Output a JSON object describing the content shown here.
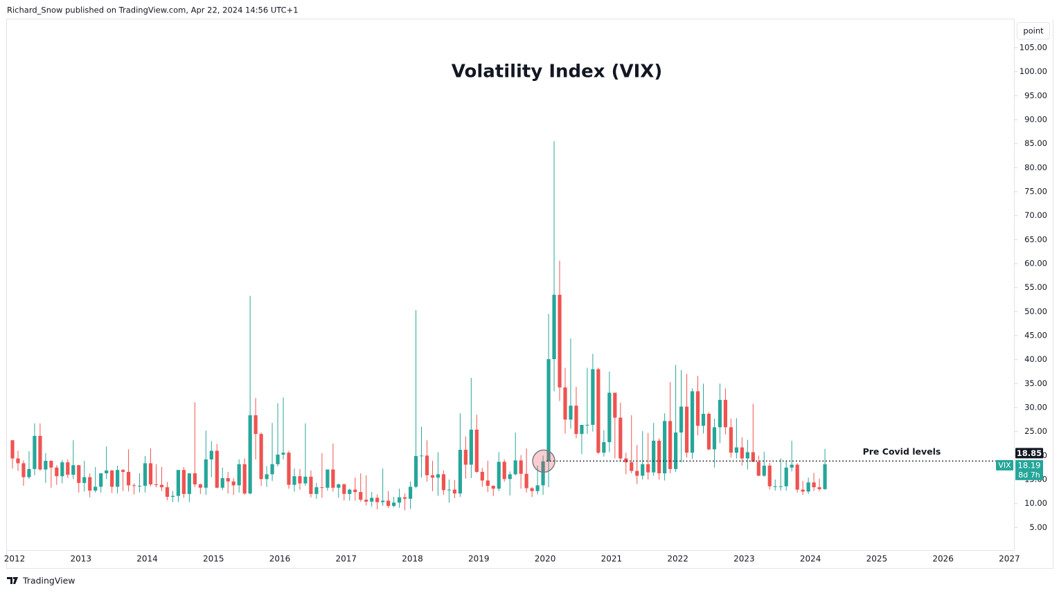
{
  "header": "Richard_Snow published on TradingView.com, Apr 22, 2024 14:56 UTC+1",
  "footer": "TradingView",
  "chart_data": {
    "type": "candlestick",
    "title": "Volatility Index (VIX)",
    "scale_label": "point",
    "up_color": "#26a69a",
    "down_color": "#ef5350",
    "categories": [
      "2012",
      null,
      null,
      null,
      null,
      null,
      null,
      null,
      null,
      null,
      null,
      null,
      "2013",
      null,
      null,
      null,
      null,
      null,
      null,
      null,
      null,
      null,
      null,
      null,
      "2014",
      null,
      null,
      null,
      null,
      null,
      null,
      null,
      null,
      null,
      null,
      null,
      "2015",
      null,
      null,
      null,
      null,
      null,
      null,
      null,
      null,
      null,
      null,
      null,
      "2016",
      null,
      null,
      null,
      null,
      null,
      null,
      null,
      null,
      null,
      null,
      null,
      "2017",
      null,
      null,
      null,
      null,
      null,
      null,
      null,
      null,
      null,
      null,
      null,
      "2018",
      null,
      null,
      null,
      null,
      null,
      null,
      null,
      null,
      null,
      null,
      null,
      "2019",
      null,
      null,
      null,
      null,
      null,
      null,
      null,
      null,
      null,
      null,
      null,
      "2020",
      null,
      null,
      null,
      null,
      null,
      null,
      null,
      null,
      null,
      null,
      null,
      "2021",
      null,
      null,
      null,
      null,
      null,
      null,
      null,
      null,
      null,
      null,
      null,
      "2022",
      null,
      null,
      null,
      null,
      null,
      null,
      null,
      null,
      null,
      null,
      null,
      "2023",
      null,
      null,
      null,
      null,
      null,
      null,
      null,
      null,
      null,
      null,
      null,
      "2024",
      null,
      null,
      null,
      null,
      null,
      null,
      null,
      null,
      null,
      null,
      null,
      "2025",
      null,
      null,
      null,
      null,
      null,
      null,
      null,
      null,
      null,
      null,
      null,
      "2026",
      null,
      null,
      null,
      null,
      null,
      null,
      null,
      null,
      null,
      null,
      null,
      "2027"
    ],
    "open": [
      23.2,
      19.4,
      18.4,
      15.5,
      17.2,
      24.1,
      17.1,
      18.9,
      17.5,
      15.7,
      18.6,
      16,
      18,
      14.3,
      15.5,
      12.7,
      13.5,
      16.3,
      16.9,
      13.5,
      17,
      16.6,
      13.8,
      13.7,
      13.7,
      18.4,
      14,
      13.9,
      13.4,
      11.4,
      11.6,
      17,
      12,
      16.3,
      14,
      13.3,
      19.2,
      21,
      13.3,
      15.3,
      14.6,
      13.8,
      18.2,
      12.1,
      28.4,
      24.5,
      15.1,
      16.1,
      18.2,
      20.2,
      20.6,
      13.9,
      15.7,
      14.2,
      15.6,
      12,
      13.4,
      13.3,
      17.1,
      13.3,
      14,
      12,
      12.9,
      12.4,
      10.8,
      10.4,
      11.2,
      10.3,
      10.6,
      9.5,
      10.2,
      11.3,
      11,
      13.5,
      19.9,
      20,
      15.9,
      15.4,
      16.1,
      12.8,
      12.9,
      12.1,
      21.2,
      18.1,
      25.4,
      16.6,
      14.8,
      13.7,
      13.1,
      18.7,
      15.1,
      16.1,
      19,
      16.2,
      13.2,
      12.6,
      13.8,
      18.8,
      40.1,
      53.5,
      34.2,
      27.5,
      30.4,
      24.5,
      26.4,
      26.4,
      38,
      20.6,
      22.8,
      33.1,
      27.9,
      19.4,
      18.6,
      16.8,
      15.8,
      18.2,
      16.5,
      23.1,
      16.3,
      27.2,
      17.2,
      24.8,
      30.2,
      20.6,
      33.4,
      26.2,
      28.7,
      21.3,
      25.9,
      31.6,
      25.9,
      20.6,
      21.7,
      19.4,
      20.7,
      18.7,
      15.8,
      17.9,
      13.6,
      13.6,
      13.6,
      17.5,
      18.1,
      12.9,
      12.5,
      14.4,
      13.4,
      13,
      null,
      null,
      null,
      null,
      null,
      null,
      null,
      null,
      null,
      null,
      null,
      null,
      null,
      null,
      null,
      null,
      null,
      null,
      null,
      null,
      null,
      null,
      null,
      null,
      null,
      null,
      null,
      null,
      null,
      null,
      null,
      null,
      null
    ],
    "high": [
      23.2,
      21,
      19,
      20.9,
      26.7,
      26.7,
      20.5,
      19,
      18,
      19.1,
      19.2,
      23.2,
      18,
      18.9,
      16.3,
      17.6,
      16.3,
      21.9,
      17,
      17.9,
      17.2,
      21.3,
      14.2,
      16.3,
      19.9,
      21.5,
      18.2,
      17.6,
      14.5,
      12.6,
      17,
      17.6,
      16.3,
      31.1,
      14.2,
      25.2,
      23,
      22.4,
      17.5,
      16.6,
      15.3,
      19.2,
      19.4,
      53.3,
      32,
      24.8,
      17.8,
      26.8,
      30.9,
      32.1,
      21,
      17.3,
      17.2,
      26.7,
      16.9,
      14.3,
      20.5,
      17.1,
      22.5,
      14.2,
      14.2,
      13.1,
      15.4,
      16.3,
      15.9,
      12.4,
      11.9,
      17.3,
      12.6,
      11.4,
      13.1,
      12.1,
      14.6,
      50.3,
      26,
      23.2,
      18.9,
      20.7,
      16.9,
      15,
      14.9,
      28.8,
      24,
      36.2,
      28.5,
      17.4,
      18.9,
      13.8,
      20.7,
      19.2,
      16.7,
      24.8,
      20.1,
      21.5,
      13.4,
      17.9,
      19.99,
      49.5,
      85.5,
      60.6,
      38.3,
      44.4,
      34.3,
      26.4,
      38.3,
      41.2,
      38.3,
      25.3,
      37.5,
      33.1,
      31,
      20.6,
      28.4,
      22.2,
      25.1,
      24.7,
      26.8,
      23.6,
      28.8,
      35.3,
      38.9,
      37.8,
      37,
      34,
      36.6,
      35,
      29,
      27.7,
      35,
      34,
      27.7,
      27.8,
      23.8,
      23.3,
      30.8,
      20,
      20.8,
      18.5,
      15,
      19.4,
      18.9,
      23.1,
      18.4,
      14.7,
      15.4,
      16.4,
      15.2,
      21.4,
      null,
      null,
      null,
      null,
      null,
      null,
      null,
      null,
      null,
      null,
      null,
      null,
      null,
      null,
      null,
      null,
      null,
      null,
      null,
      null,
      null,
      null,
      null,
      null,
      null,
      null,
      null,
      null,
      null,
      null,
      null,
      null,
      null
    ],
    "low": [
      17.3,
      16.8,
      13.7,
      15.1,
      15.9,
      16.8,
      14.3,
      13.3,
      13.9,
      14.2,
      15.3,
      15.1,
      12.3,
      12.5,
      11.3,
      12.3,
      12.3,
      15.1,
      12.2,
      12.1,
      12.6,
      12.5,
      11.9,
      12.3,
      12.3,
      13.6,
      13.4,
      12.6,
      10.7,
      10.3,
      10.3,
      11.2,
      10.3,
      13.4,
      12,
      11.8,
      15.5,
      13.2,
      12.8,
      12.1,
      11.8,
      12.3,
      11.8,
      11.9,
      19.2,
      13.7,
      13.5,
      14.7,
      17.7,
      19.2,
      13.1,
      12.5,
      12.9,
      13.7,
      11.3,
      11,
      11.2,
      12.7,
      12.5,
      11.2,
      10.6,
      10.6,
      10.6,
      10.4,
      9.6,
      9.4,
      8.8,
      9.5,
      9.1,
      9.2,
      9.1,
      8.6,
      8.9,
      13.2,
      15.4,
      14.6,
      12.6,
      11.6,
      11.8,
      10.2,
      11.1,
      11.4,
      15.2,
      15.3,
      16.4,
      13.5,
      12.4,
      11.6,
      12.6,
      14.6,
      11.7,
      15.9,
      13.1,
      12.3,
      11.4,
      11.9,
      11.8,
      13.4,
      33.4,
      31.4,
      24.6,
      25.6,
      23.6,
      20.3,
      24.5,
      25,
      20.3,
      19.8,
      20.7,
      19.4,
      18.9,
      16.1,
      16.3,
      14.1,
      15,
      15,
      15.8,
      15,
      14.8,
      16.3,
      16.6,
      18.6,
      19.6,
      19.3,
      24.2,
      24.6,
      21.1,
      17.5,
      22.6,
      24.4,
      19.6,
      19.4,
      17.9,
      17.1,
      18.7,
      15.7,
      15.6,
      12.9,
      12.7,
      12.7,
      12.7,
      16.7,
      12.3,
      11.8,
      12,
      12.6,
      12.6,
      12.9,
      null,
      null,
      null,
      null,
      null,
      null,
      null,
      null,
      null,
      null,
      null,
      null,
      null,
      null,
      null,
      null,
      null,
      null,
      null,
      null,
      null,
      null,
      null,
      null,
      null,
      null,
      null,
      null,
      null,
      null,
      null,
      null,
      null
    ],
    "close": [
      19.4,
      18.4,
      15.5,
      17.2,
      24.1,
      17.1,
      18.9,
      17.5,
      15.7,
      18.6,
      16,
      18,
      14.3,
      15.5,
      12.7,
      13.5,
      16.3,
      16.9,
      13.5,
      17,
      16.6,
      13.8,
      13.7,
      13.7,
      18.4,
      14,
      13.9,
      13.4,
      11.4,
      11.6,
      17,
      12,
      16.3,
      14,
      13.3,
      19.2,
      21,
      13.3,
      15.3,
      14.6,
      13.8,
      18.2,
      12.1,
      28.4,
      24.5,
      15.1,
      16.1,
      18.2,
      20.2,
      20.6,
      13.9,
      15.7,
      14.2,
      15.6,
      12,
      13.4,
      13.3,
      17.1,
      13.3,
      14,
      12,
      12.9,
      12.4,
      10.8,
      10.4,
      11.2,
      10.3,
      10.6,
      9.5,
      10.2,
      11.3,
      11,
      13.5,
      19.9,
      20,
      15.9,
      15.4,
      16.1,
      12.8,
      12.9,
      12.1,
      21.2,
      18.1,
      25.4,
      16.6,
      14.8,
      13.7,
      13.1,
      18.7,
      15.1,
      16.1,
      19,
      16.2,
      13.2,
      12.6,
      13.8,
      18.8,
      40.1,
      53.5,
      34.2,
      27.5,
      30.4,
      24.5,
      26.4,
      26.4,
      38,
      20.6,
      22.8,
      33.1,
      27.9,
      19.4,
      18.6,
      16.8,
      15.8,
      18.2,
      16.5,
      23.1,
      16.3,
      27.2,
      17.2,
      24.8,
      30.2,
      20.6,
      33.4,
      26.2,
      28.7,
      21.3,
      25.9,
      31.6,
      25.9,
      20.6,
      21.7,
      19.4,
      20.7,
      18.7,
      15.8,
      17.9,
      13.6,
      13.6,
      13.6,
      17.5,
      18.1,
      12.9,
      12.5,
      14.4,
      13.4,
      13,
      18.19,
      null,
      null,
      null,
      null,
      null,
      null,
      null,
      null,
      null,
      null,
      null,
      null,
      null,
      null,
      null,
      null,
      null,
      null,
      null,
      null,
      null,
      null,
      null,
      null,
      null,
      null,
      null,
      null,
      null,
      null,
      null,
      null,
      null
    ],
    "ylim": [
      0.3,
      110.9
    ],
    "yticks": [
      {
        "value": 5,
        "label": "5.00"
      },
      {
        "value": 10,
        "label": "10.00"
      },
      {
        "value": 15,
        "label": "15.00"
      },
      {
        "value": 20,
        "label": "20.00"
      },
      {
        "value": 25,
        "label": "25.00"
      },
      {
        "value": 30,
        "label": "30.00"
      },
      {
        "value": 35,
        "label": "35.00"
      },
      {
        "value": 40,
        "label": "40.00"
      },
      {
        "value": 45,
        "label": "45.00"
      },
      {
        "value": 50,
        "label": "50.00"
      },
      {
        "value": 55,
        "label": "55.00"
      },
      {
        "value": 60,
        "label": "60.00"
      },
      {
        "value": 65,
        "label": "65.00"
      },
      {
        "value": 70,
        "label": "70.00"
      },
      {
        "value": 75,
        "label": "75.00"
      },
      {
        "value": 80,
        "label": "80.00"
      },
      {
        "value": 85,
        "label": "85.00"
      },
      {
        "value": 90,
        "label": "90.00"
      },
      {
        "value": 95,
        "label": "95.00"
      },
      {
        "value": 100,
        "label": "100.00"
      },
      {
        "value": 105,
        "label": "105.00"
      }
    ],
    "annotation": {
      "text": "Pre Covid levels",
      "value": 18.85
    },
    "last_price": {
      "symbol": "VIX",
      "value": 18.19,
      "countdown": "8d 7h"
    }
  }
}
